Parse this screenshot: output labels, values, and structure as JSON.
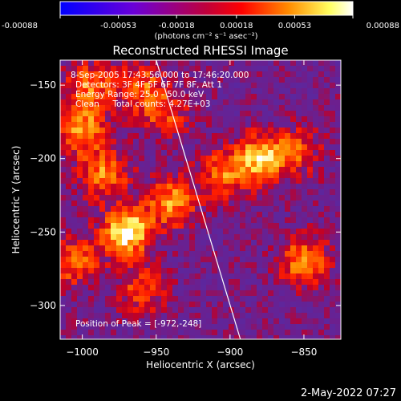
{
  "colorbar": {
    "ticks": [
      "-0.00088",
      "-0.00053",
      "-0.00018",
      "0.00018",
      "0.00053",
      "0.00088"
    ],
    "tick_values": [
      -0.00088,
      -0.00053,
      -0.00018,
      0.00018,
      0.00053,
      0.00088
    ],
    "range": [
      -0.00088,
      0.00088
    ],
    "units_label": "(photons cm⁻² s⁻¹ asec⁻²)",
    "colors": [
      "#0000ff",
      "#6a00d8",
      "#ff0000",
      "#ff8c00",
      "#ffff80",
      "#ffffff"
    ]
  },
  "chart_data": {
    "type": "heatmap",
    "title": "Reconstructed RHESSI Image",
    "xlabel": "Heliocentric X (arcsec)",
    "ylabel": "Heliocentric Y (arcsec)",
    "xlim": [
      -1015,
      -825
    ],
    "ylim": [
      -323,
      -133
    ],
    "x_ticks": [
      -1000,
      -950,
      -900,
      -850
    ],
    "y_ticks": [
      -300,
      -250,
      -200,
      -150
    ],
    "x_tick_labels": [
      "−1000",
      "−950",
      "−900",
      "−850"
    ],
    "y_tick_labels": [
      "−300",
      "−250",
      "−200",
      "−150"
    ],
    "info_lines": [
      "8-Sep-2005 17:43:56.000 to 17:46:20.000",
      "Detectors: 3F 4F 5F 6F 7F 8F, Att 1",
      "Energy Range: 25.0 - 50.0 keV",
      "Clean     Total counts: 4.27E+03"
    ],
    "peak_label": "Position of Peak = [-972,-248]",
    "peak_position": [
      -972,
      -248
    ],
    "limb_line": [
      [
        -950,
        -133
      ],
      [
        -893,
        -323
      ]
    ],
    "bright_regions": [
      {
        "x": -970,
        "y": -250,
        "value": 0.00088
      },
      {
        "x": -1000,
        "y": -180,
        "value": 0.0006
      },
      {
        "x": -985,
        "y": -210,
        "value": 0.00055
      },
      {
        "x": -940,
        "y": -230,
        "value": 0.0006
      },
      {
        "x": -880,
        "y": -200,
        "value": 0.0007
      },
      {
        "x": -905,
        "y": -210,
        "value": 0.0005
      },
      {
        "x": -1005,
        "y": -270,
        "value": 0.0005
      },
      {
        "x": -960,
        "y": -290,
        "value": 0.0004
      },
      {
        "x": -850,
        "y": -270,
        "value": 0.0006
      },
      {
        "x": -855,
        "y": -195,
        "value": 0.0004
      },
      {
        "x": -945,
        "y": -170,
        "value": 0.0004
      },
      {
        "x": -960,
        "y": -150,
        "value": 0.00045
      },
      {
        "x": -995,
        "y": -150,
        "value": 0.0005
      }
    ]
  },
  "footer": {
    "timestamp": "2-May-2022 07:27"
  }
}
